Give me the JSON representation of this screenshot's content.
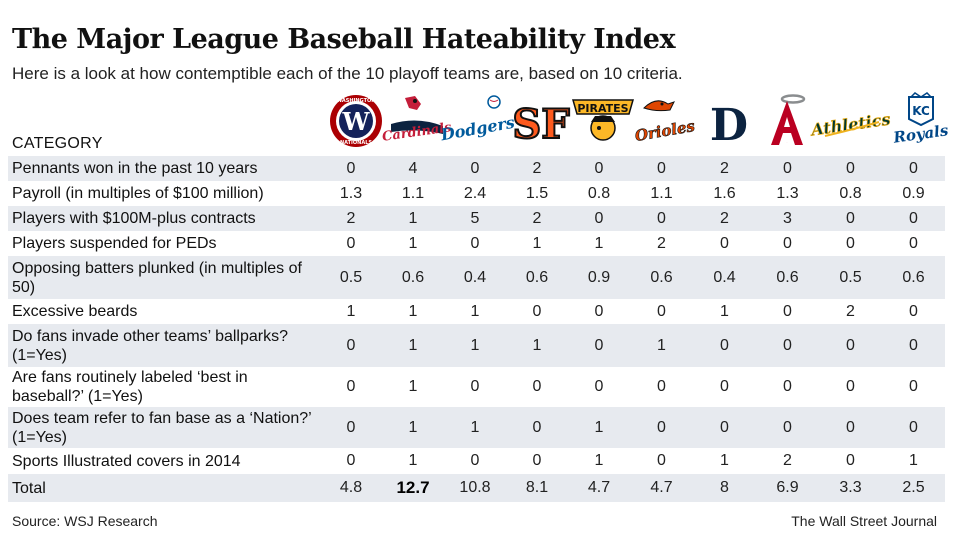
{
  "title": "The Major League Baseball Hateability Index",
  "subtitle": "Here is a look at how contemptible each of the 10 playoff teams are, based on 10 criteria.",
  "category_header": "CATEGORY",
  "source": "Source: WSJ Research",
  "publisher": "The Wall Street Journal",
  "colors": {
    "row_shade": "#e7eaef",
    "nationals": "#ab0003",
    "cardinals": "#c41e3a",
    "dodgers": "#005a9c",
    "giants": "#fd5a1e",
    "pirates": "#fdb827",
    "orioles": "#df4601",
    "tigers": "#0c2340",
    "angels": "#ba0021",
    "athletics": "#003831",
    "royals": "#004687"
  },
  "teams": [
    {
      "name": "Washington Nationals",
      "logo_text": "W",
      "logo_ring": "WASHINGTON",
      "logo_sub": "NATIONALS"
    },
    {
      "name": "St. Louis Cardinals",
      "logo_text": "Cardinals"
    },
    {
      "name": "Los Angeles Dodgers",
      "logo_text": "Dodgers"
    },
    {
      "name": "San Francisco Giants",
      "logo_text": "SF"
    },
    {
      "name": "Pittsburgh Pirates",
      "logo_text": "PIRATES"
    },
    {
      "name": "Baltimore Orioles",
      "logo_text": "Orioles"
    },
    {
      "name": "Detroit Tigers",
      "logo_text": "D"
    },
    {
      "name": "Los Angeles Angels",
      "logo_text": "A"
    },
    {
      "name": "Oakland Athletics",
      "logo_text": "Athletics"
    },
    {
      "name": "Kansas City Royals",
      "logo_text": "Royals",
      "logo_mono": "KC"
    }
  ],
  "chart_data": {
    "type": "table",
    "title": "The Major League Baseball Hateability Index",
    "columns": [
      "Nationals",
      "Cardinals",
      "Dodgers",
      "Giants",
      "Pirates",
      "Orioles",
      "Tigers",
      "Angels",
      "Athletics",
      "Royals"
    ],
    "rows": [
      {
        "label": "Pennants won in the past 10 years",
        "values": [
          "0",
          "4",
          "0",
          "2",
          "0",
          "0",
          "2",
          "0",
          "0",
          "0"
        ]
      },
      {
        "label": "Payroll (in multiples of $100 million)",
        "values": [
          "1.3",
          "1.1",
          "2.4",
          "1.5",
          "0.8",
          "1.1",
          "1.6",
          "1.3",
          "0.8",
          "0.9"
        ]
      },
      {
        "label": "Players with $100M-plus contracts",
        "values": [
          "2",
          "1",
          "5",
          "2",
          "0",
          "0",
          "2",
          "3",
          "0",
          "0"
        ]
      },
      {
        "label": "Players suspended for PEDs",
        "values": [
          "0",
          "1",
          "0",
          "1",
          "1",
          "2",
          "0",
          "0",
          "0",
          "0"
        ]
      },
      {
        "label": "Opposing batters plunked (in multiples of 50)",
        "values": [
          "0.5",
          "0.6",
          "0.4",
          "0.6",
          "0.9",
          "0.6",
          "0.4",
          "0.6",
          "0.5",
          "0.6"
        ]
      },
      {
        "label": "Excessive beards",
        "values": [
          "1",
          "1",
          "1",
          "0",
          "0",
          "0",
          "1",
          "0",
          "2",
          "0"
        ]
      },
      {
        "label": "Do fans invade other teams’ ballparks? (1=Yes)",
        "values": [
          "0",
          "1",
          "1",
          "1",
          "0",
          "1",
          "0",
          "0",
          "0",
          "0"
        ]
      },
      {
        "label": "Are fans routinely labeled ‘best in baseball?’ (1=Yes)",
        "values": [
          "0",
          "1",
          "0",
          "0",
          "0",
          "0",
          "0",
          "0",
          "0",
          "0"
        ]
      },
      {
        "label": "Does team refer to fan base as a ‘Nation?’ (1=Yes)",
        "values": [
          "0",
          "1",
          "1",
          "0",
          "1",
          "0",
          "0",
          "0",
          "0",
          "0"
        ]
      },
      {
        "label": "Sports Illustrated covers in 2014",
        "values": [
          "0",
          "1",
          "0",
          "0",
          "1",
          "0",
          "1",
          "2",
          "0",
          "1"
        ]
      }
    ],
    "total": {
      "label": "Total",
      "values": [
        "4.8",
        "12.7",
        "10.8",
        "8.1",
        "4.7",
        "4.7",
        "8",
        "6.9",
        "3.3",
        "2.5"
      ],
      "highlight_index": 1
    }
  }
}
